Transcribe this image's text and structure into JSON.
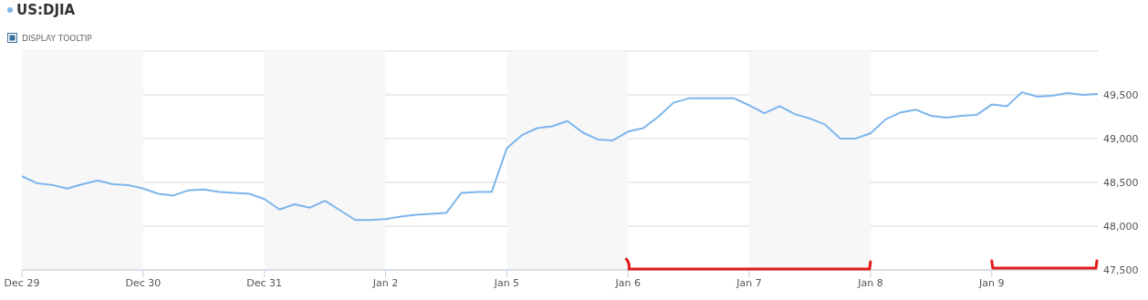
{
  "chart_data": {
    "type": "line",
    "legend": "top left",
    "grid": "y",
    "marker": "none",
    "line_style": "solid",
    "annotations": [
      "DISPLAY TOOLTIP"
    ],
    "categories": [
      "Dec 29",
      null,
      null,
      null,
      null,
      null,
      null,
      null,
      "Dec 30",
      null,
      null,
      null,
      null,
      null,
      null,
      null,
      "Dec 31",
      null,
      null,
      null,
      null,
      null,
      null,
      null,
      "Jan 2",
      null,
      null,
      null,
      null,
      null,
      null,
      null,
      "Jan 5",
      null,
      null,
      null,
      null,
      null,
      null,
      null,
      "Jan 6",
      null,
      null,
      null,
      null,
      null,
      null,
      null,
      "Jan 7",
      null,
      null,
      null,
      null,
      null,
      null,
      null,
      "Jan 8",
      null,
      null,
      null,
      null,
      null,
      null,
      null,
      "Jan 9",
      null,
      null,
      null,
      null,
      null,
      null,
      null
    ],
    "series": [
      {
        "name": "US:DJIA",
        "color": "#7cb5ec",
        "values": [
          48570,
          48490,
          48470,
          48430,
          48480,
          48520,
          48480,
          48470,
          48430,
          48370,
          48350,
          48410,
          48420,
          48390,
          48380,
          48370,
          48310,
          48190,
          48250,
          48210,
          48290,
          48180,
          48070,
          48070,
          48080,
          48110,
          48130,
          48140,
          48150,
          48380,
          48390,
          48390,
          48890,
          49040,
          49120,
          49140,
          49200,
          49070,
          48990,
          48980,
          49080,
          49120,
          49250,
          49410,
          49460,
          49460,
          49460,
          49460,
          49380,
          49290,
          49370,
          49280,
          49230,
          49160,
          49000,
          49000,
          49060,
          49220,
          49300,
          49330,
          49260,
          49240,
          49260,
          49270,
          49390,
          49370,
          49530,
          49480,
          49490,
          49520,
          49500,
          49510
        ]
      }
    ],
    "ylim": [
      47500,
      50000
    ],
    "yticks": [
      {
        "value": 47500,
        "label": "47,500"
      },
      {
        "value": 48000,
        "label": "48,000"
      },
      {
        "value": 48500,
        "label": "48,500"
      },
      {
        "value": 49000,
        "label": "49,000"
      },
      {
        "value": 49500,
        "label": "49,500"
      },
      {
        "value": 50000,
        "label": null
      }
    ],
    "bands": [
      {
        "axis": "x",
        "from": "Dec 29",
        "to": "Dec 30",
        "color": "#f7f7f7"
      },
      {
        "axis": "x",
        "from": "Dec 31",
        "to": "Jan 2",
        "color": "#f7f7f7"
      },
      {
        "axis": "x",
        "from": "Jan 5",
        "to": "Jan 6",
        "color": "#f7f7f7"
      },
      {
        "axis": "x",
        "from": "Jan 7",
        "to": "Jan 8",
        "color": "#f7f7f7"
      }
    ]
  }
}
